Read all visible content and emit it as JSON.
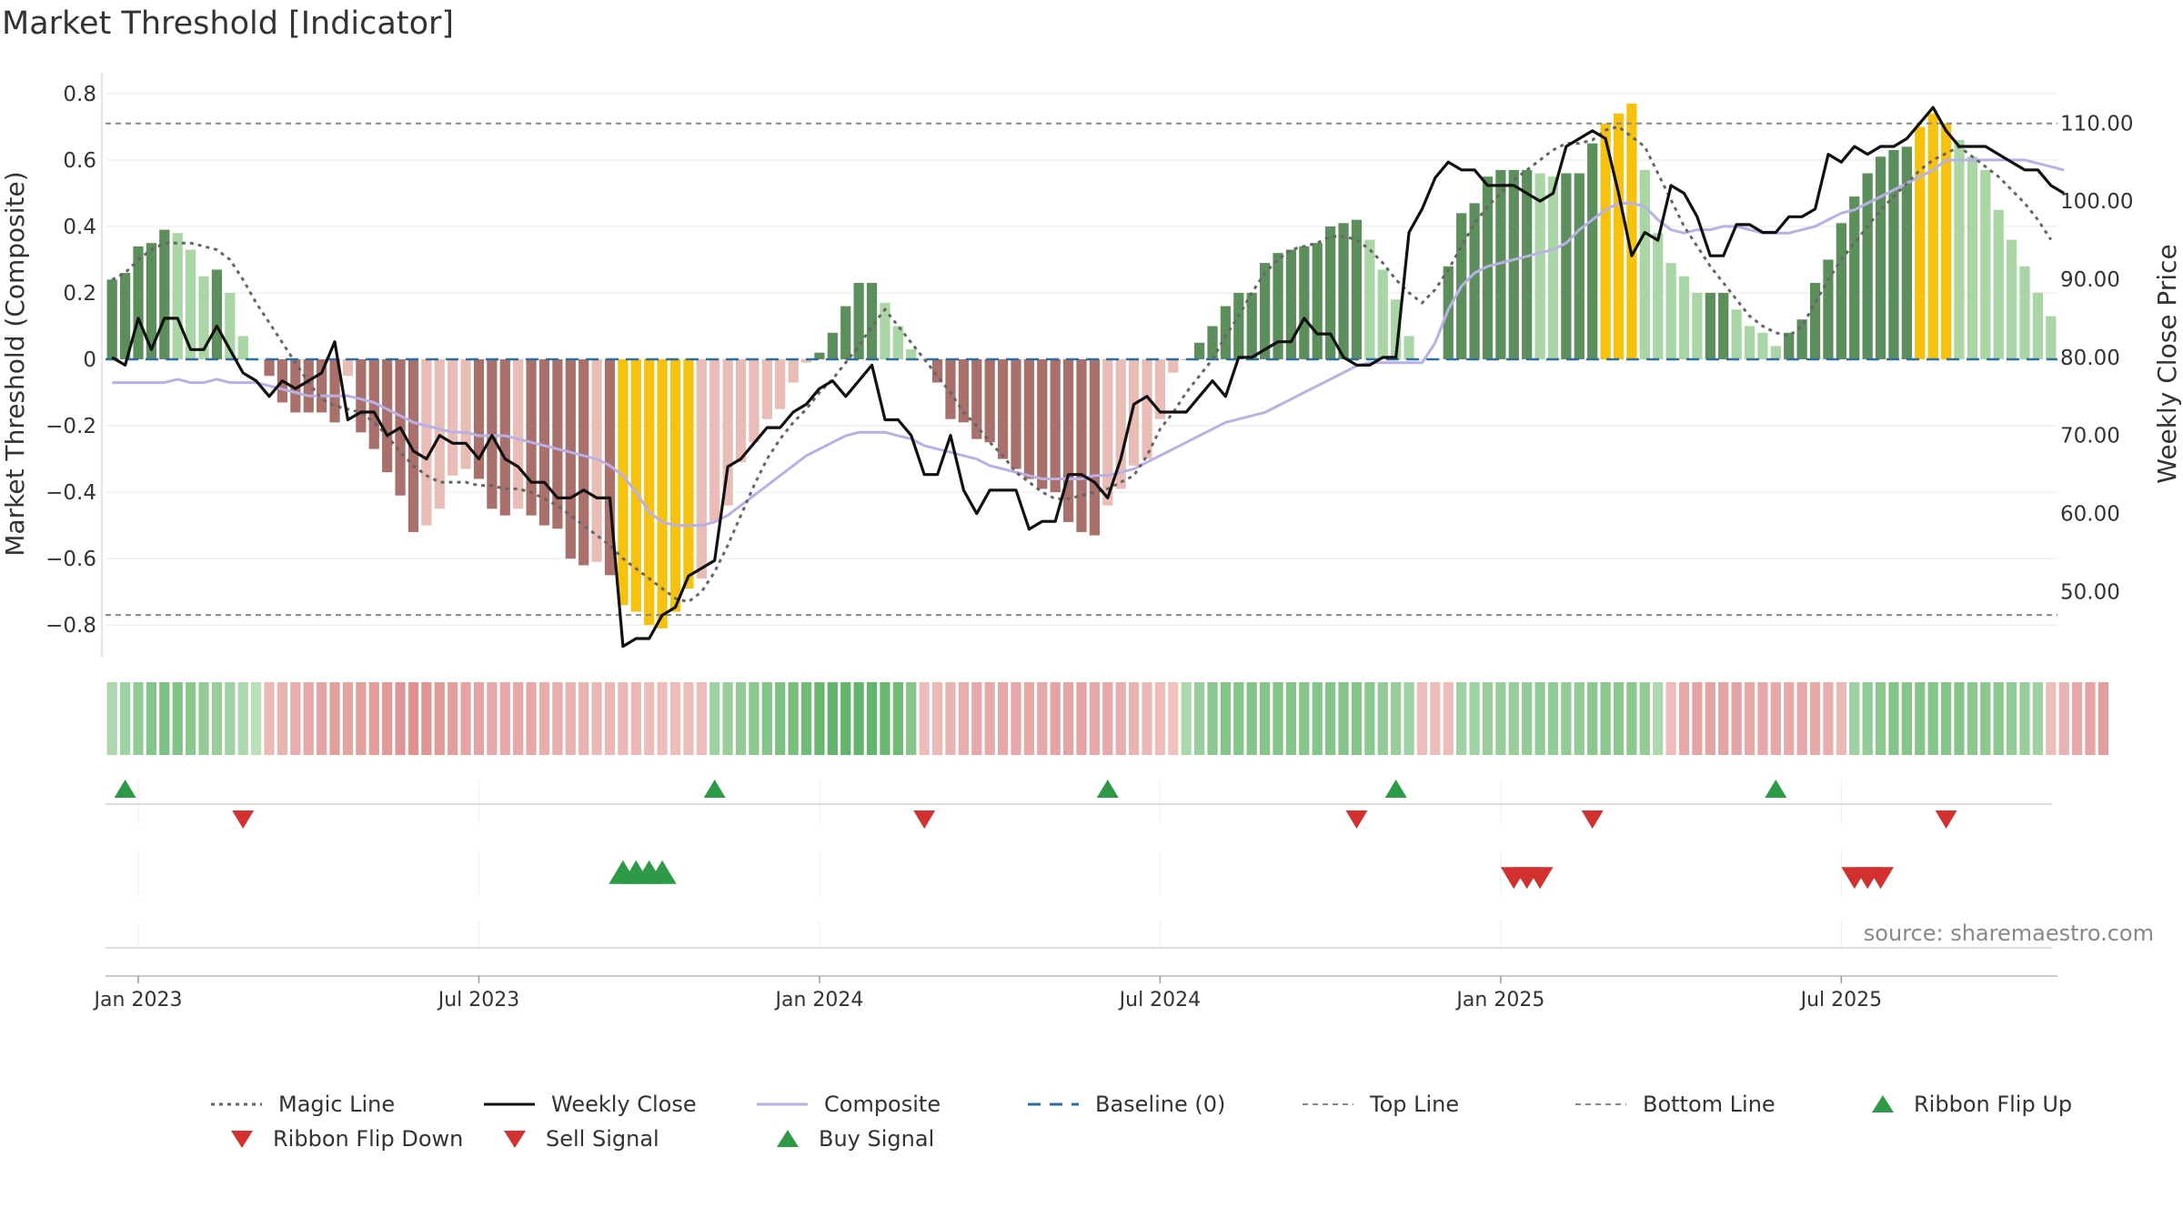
{
  "title": "Market Threshold [Indicator]",
  "source": "source: sharemaestro.com",
  "colors": {
    "dark_green": "#5c8f5c",
    "light_green": "#a9d6a4",
    "dark_red": "#a9706c",
    "light_red": "#e9bcb6",
    "gold": "#f7c20d",
    "close": "#111111",
    "composite": "#b9b0e6",
    "magic": "#666666",
    "baseline": "#2f6f9f",
    "thresh_line": "#888888",
    "buy_green": "#2e9a48",
    "sell_red": "#d33030",
    "grid": "#e9e9e9"
  },
  "chart_data": {
    "type": "bar",
    "title": "Market Threshold [Indicator]",
    "ylabel": "Market Threshold (Composite)",
    "y2label": "Weekly Close Price",
    "ylim": [
      -0.89,
      0.89
    ],
    "y2lim": [
      41.9,
      117.6
    ],
    "yticks": [
      0.8,
      0.6,
      0.4,
      0.2,
      0,
      -0.2,
      -0.4,
      -0.6,
      -0.8
    ],
    "ytick_labels": [
      "0.8",
      "0.6",
      "0.4",
      "0.2",
      "0",
      "−0.2",
      "−0.4",
      "−0.6",
      "−0.8"
    ],
    "y2ticks": [
      110,
      100,
      90,
      80,
      70,
      60,
      50
    ],
    "y2tick_labels": [
      "110.00",
      "100.00",
      "90.00",
      "80.00",
      "70.00",
      "60.00",
      "50.00"
    ],
    "xticks": [
      {
        "label": "Jan 2023",
        "week": 2
      },
      {
        "label": "Jul 2023",
        "week": 28
      },
      {
        "label": "Jan 2024",
        "week": 54
      },
      {
        "label": "Jul 2024",
        "week": 80
      },
      {
        "label": "Jan 2025",
        "week": 106
      },
      {
        "label": "Jul 2025",
        "week": 132
      }
    ],
    "top_line": 0.71,
    "bottom_line": -0.77,
    "baseline": 0,
    "bar_values": [
      0.24,
      0.26,
      0.34,
      0.35,
      0.39,
      0.38,
      0.33,
      0.25,
      0.27,
      0.2,
      0.07,
      0,
      -0.05,
      -0.13,
      -0.16,
      -0.16,
      -0.16,
      -0.19,
      -0.05,
      -0.22,
      -0.27,
      -0.34,
      -0.41,
      -0.52,
      -0.5,
      -0.45,
      -0.35,
      -0.33,
      -0.36,
      -0.45,
      -0.47,
      -0.45,
      -0.47,
      -0.5,
      -0.51,
      -0.6,
      -0.62,
      -0.61,
      -0.65,
      -0.74,
      -0.76,
      -0.8,
      -0.81,
      -0.76,
      -0.69,
      -0.66,
      -0.49,
      -0.44,
      -0.31,
      -0.25,
      -0.18,
      -0.15,
      -0.07,
      -0.01,
      0.02,
      0.08,
      0.16,
      0.23,
      0.23,
      0.17,
      0.1,
      0.03,
      0,
      -0.07,
      -0.18,
      -0.19,
      -0.24,
      -0.25,
      -0.3,
      -0.33,
      -0.36,
      -0.39,
      -0.4,
      -0.49,
      -0.52,
      -0.53,
      -0.44,
      -0.39,
      -0.32,
      -0.3,
      -0.18,
      -0.04,
      0,
      0.05,
      0.1,
      0.16,
      0.2,
      0.2,
      0.29,
      0.32,
      0.33,
      0.34,
      0.35,
      0.4,
      0.41,
      0.42,
      0.36,
      0.27,
      0.18,
      0.07,
      0,
      0,
      0.28,
      0.44,
      0.47,
      0.55,
      0.57,
      0.57,
      0.57,
      0.56,
      0.55,
      0.56,
      0.56,
      0.65,
      0.71,
      0.74,
      0.77,
      0.57,
      0.38,
      0.29,
      0.25,
      0.2,
      0.2,
      0.2,
      0.15,
      0.1,
      0.08,
      0.04,
      0.08,
      0.12,
      0.23,
      0.3,
      0.41,
      0.49,
      0.56,
      0.61,
      0.63,
      0.64,
      0.7,
      0.74,
      0.71,
      0.66,
      0.61,
      0.57,
      0.45,
      0.36,
      0.28,
      0.2,
      0.13
    ],
    "weekly_close": [
      80,
      79,
      85,
      81,
      85,
      85,
      81,
      81,
      84,
      81,
      78,
      77,
      75,
      77,
      76,
      77,
      78,
      82,
      72,
      73,
      73,
      70,
      71,
      68,
      67,
      70,
      69,
      69,
      67,
      70,
      67,
      66,
      64,
      64,
      62,
      62,
      63,
      62,
      62,
      43,
      44,
      44,
      47,
      48,
      52,
      53,
      54,
      66,
      67,
      69,
      71,
      71,
      73,
      74,
      76,
      77,
      75,
      77,
      79,
      72,
      72,
      70,
      65,
      65,
      70,
      63,
      60,
      63,
      63,
      63,
      58,
      59,
      59,
      65,
      65,
      64,
      62,
      67,
      74,
      75,
      73,
      73,
      73,
      75,
      77,
      75,
      80,
      80,
      81,
      82,
      82,
      85,
      83,
      83,
      80,
      79,
      79,
      80,
      80,
      96,
      99,
      103,
      105,
      104,
      104,
      102,
      102,
      102,
      101,
      100,
      101,
      107,
      108,
      109,
      108,
      101,
      93,
      96,
      95,
      102,
      101,
      98,
      93,
      93,
      97,
      97,
      96,
      96,
      98,
      98,
      99,
      106,
      105,
      107,
      106,
      107,
      107,
      108,
      110,
      112,
      109,
      107,
      107,
      107,
      106,
      105,
      104,
      104,
      102,
      101
    ],
    "composite": [
      -0.07,
      -0.07,
      -0.07,
      -0.07,
      -0.07,
      -0.06,
      -0.07,
      -0.07,
      -0.06,
      -0.07,
      -0.07,
      -0.07,
      -0.08,
      -0.09,
      -0.1,
      -0.11,
      -0.11,
      -0.11,
      -0.11,
      -0.12,
      -0.13,
      -0.15,
      -0.17,
      -0.19,
      -0.2,
      -0.21,
      -0.22,
      -0.22,
      -0.23,
      -0.23,
      -0.23,
      -0.24,
      -0.25,
      -0.26,
      -0.27,
      -0.28,
      -0.29,
      -0.3,
      -0.32,
      -0.35,
      -0.4,
      -0.46,
      -0.49,
      -0.5,
      -0.5,
      -0.5,
      -0.49,
      -0.47,
      -0.44,
      -0.41,
      -0.38,
      -0.35,
      -0.32,
      -0.29,
      -0.27,
      -0.25,
      -0.23,
      -0.22,
      -0.22,
      -0.22,
      -0.23,
      -0.24,
      -0.26,
      -0.27,
      -0.28,
      -0.29,
      -0.3,
      -0.32,
      -0.33,
      -0.34,
      -0.35,
      -0.36,
      -0.36,
      -0.36,
      -0.36,
      -0.35,
      -0.35,
      -0.34,
      -0.33,
      -0.31,
      -0.29,
      -0.27,
      -0.25,
      -0.23,
      -0.21,
      -0.19,
      -0.18,
      -0.17,
      -0.16,
      -0.14,
      -0.12,
      -0.1,
      -0.08,
      -0.06,
      -0.04,
      -0.02,
      -0.01,
      -0.01,
      -0.01,
      -0.01,
      -0.01,
      0.05,
      0.15,
      0.22,
      0.26,
      0.28,
      0.29,
      0.3,
      0.31,
      0.32,
      0.33,
      0.35,
      0.39,
      0.42,
      0.45,
      0.47,
      0.47,
      0.46,
      0.42,
      0.39,
      0.38,
      0.39,
      0.39,
      0.4,
      0.4,
      0.39,
      0.38,
      0.38,
      0.38,
      0.39,
      0.4,
      0.42,
      0.44,
      0.45,
      0.47,
      0.49,
      0.51,
      0.53,
      0.55,
      0.57,
      0.6,
      0.6,
      0.6,
      0.6,
      0.6,
      0.6,
      0.6,
      0.59,
      0.58,
      0.57
    ],
    "magic_line": [
      0.24,
      0.26,
      0.3,
      0.33,
      0.35,
      0.35,
      0.35,
      0.34,
      0.33,
      0.3,
      0.24,
      0.17,
      0.11,
      0.05,
      -0.01,
      -0.07,
      -0.12,
      -0.14,
      -0.15,
      -0.16,
      -0.19,
      -0.23,
      -0.28,
      -0.32,
      -0.35,
      -0.37,
      -0.37,
      -0.37,
      -0.38,
      -0.38,
      -0.39,
      -0.39,
      -0.4,
      -0.42,
      -0.44,
      -0.47,
      -0.5,
      -0.53,
      -0.56,
      -0.6,
      -0.63,
      -0.66,
      -0.69,
      -0.72,
      -0.73,
      -0.7,
      -0.64,
      -0.56,
      -0.47,
      -0.38,
      -0.3,
      -0.24,
      -0.19,
      -0.15,
      -0.1,
      -0.06,
      -0.01,
      0.04,
      0.1,
      0.15,
      0.1,
      0.05,
      0,
      -0.05,
      -0.1,
      -0.16,
      -0.2,
      -0.25,
      -0.29,
      -0.34,
      -0.37,
      -0.4,
      -0.42,
      -0.42,
      -0.41,
      -0.4,
      -0.39,
      -0.37,
      -0.35,
      -0.29,
      -0.21,
      -0.16,
      -0.1,
      -0.05,
      0,
      0.07,
      0.13,
      0.2,
      0.26,
      0.3,
      0.33,
      0.34,
      0.35,
      0.37,
      0.37,
      0.36,
      0.33,
      0.29,
      0.24,
      0.2,
      0.17,
      0.21,
      0.27,
      0.34,
      0.41,
      0.46,
      0.5,
      0.54,
      0.57,
      0.6,
      0.63,
      0.65,
      0.65,
      0.66,
      0.69,
      0.7,
      0.67,
      0.64,
      0.56,
      0.48,
      0.4,
      0.34,
      0.28,
      0.23,
      0.18,
      0.13,
      0.1,
      0.08,
      0.07,
      0.1,
      0.17,
      0.24,
      0.3,
      0.35,
      0.4,
      0.45,
      0.49,
      0.53,
      0.57,
      0.6,
      0.62,
      0.64,
      0.61,
      0.58,
      0.55,
      0.51,
      0.47,
      0.42,
      0.36
    ],
    "ribbon_intensity": [
      0.3,
      0.4,
      0.5,
      0.6,
      0.65,
      0.62,
      0.55,
      0.5,
      0.45,
      0.4,
      0.3,
      0.2,
      -0.35,
      -0.4,
      -0.45,
      -0.5,
      -0.55,
      -0.6,
      -0.55,
      -0.6,
      -0.62,
      -0.65,
      -0.7,
      -0.75,
      -0.7,
      -0.65,
      -0.6,
      -0.55,
      -0.55,
      -0.5,
      -0.5,
      -0.5,
      -0.5,
      -0.45,
      -0.45,
      -0.4,
      -0.4,
      -0.35,
      -0.35,
      -0.35,
      -0.35,
      -0.3,
      -0.3,
      -0.3,
      -0.3,
      -0.3,
      0.4,
      0.45,
      0.5,
      0.55,
      0.6,
      0.65,
      0.7,
      0.75,
      0.8,
      0.85,
      0.85,
      0.85,
      0.85,
      0.8,
      0.75,
      0.6,
      -0.3,
      -0.35,
      -0.4,
      -0.45,
      -0.5,
      -0.5,
      -0.5,
      -0.5,
      -0.5,
      -0.5,
      -0.55,
      -0.55,
      -0.55,
      -0.5,
      -0.5,
      -0.45,
      -0.4,
      -0.35,
      -0.3,
      -0.25,
      0.3,
      0.45,
      0.55,
      0.6,
      0.6,
      0.6,
      0.6,
      0.6,
      0.6,
      0.6,
      0.6,
      0.6,
      0.6,
      0.6,
      0.55,
      0.5,
      0.45,
      0.4,
      -0.3,
      -0.3,
      -0.3,
      0.4,
      0.4,
      0.45,
      0.45,
      0.45,
      0.5,
      0.5,
      0.5,
      0.5,
      0.5,
      0.55,
      0.55,
      0.55,
      0.55,
      0.5,
      0.3,
      -0.3,
      -0.5,
      -0.55,
      -0.55,
      -0.55,
      -0.55,
      -0.5,
      -0.5,
      -0.5,
      -0.5,
      -0.5,
      -0.5,
      -0.45,
      -0.35,
      0.4,
      0.5,
      0.55,
      0.6,
      0.6,
      0.6,
      0.6,
      0.6,
      0.6,
      0.55,
      0.55,
      0.55,
      0.5,
      0.45,
      0.4,
      -0.3,
      -0.4,
      -0.5,
      -0.55,
      -0.6
    ],
    "ribbon_flip_up": [
      1,
      46,
      76,
      98,
      127
    ],
    "ribbon_flip_down": [
      10,
      62,
      95,
      113,
      140
    ],
    "buy_signals": [
      39,
      40,
      41,
      42
    ],
    "sell_signals": [
      107,
      108,
      109,
      133,
      134,
      135
    ],
    "legend": [
      {
        "label": "Magic Line",
        "style": "dotted-gray"
      },
      {
        "label": "Weekly Close",
        "style": "solid-black"
      },
      {
        "label": "Composite",
        "style": "solid-lavender"
      },
      {
        "label": "Baseline (0)",
        "style": "dashed-blue"
      },
      {
        "label": "Top Line",
        "style": "dashed-gray"
      },
      {
        "label": "Bottom Line",
        "style": "dashed-gray"
      },
      {
        "label": "Ribbon Flip Up",
        "style": "triangle-up-green"
      },
      {
        "label": "Ribbon Flip Down",
        "style": "triangle-down-red"
      },
      {
        "label": "Sell Signal",
        "style": "triangle-down-red"
      },
      {
        "label": "Buy Signal",
        "style": "triangle-up-green"
      }
    ]
  }
}
